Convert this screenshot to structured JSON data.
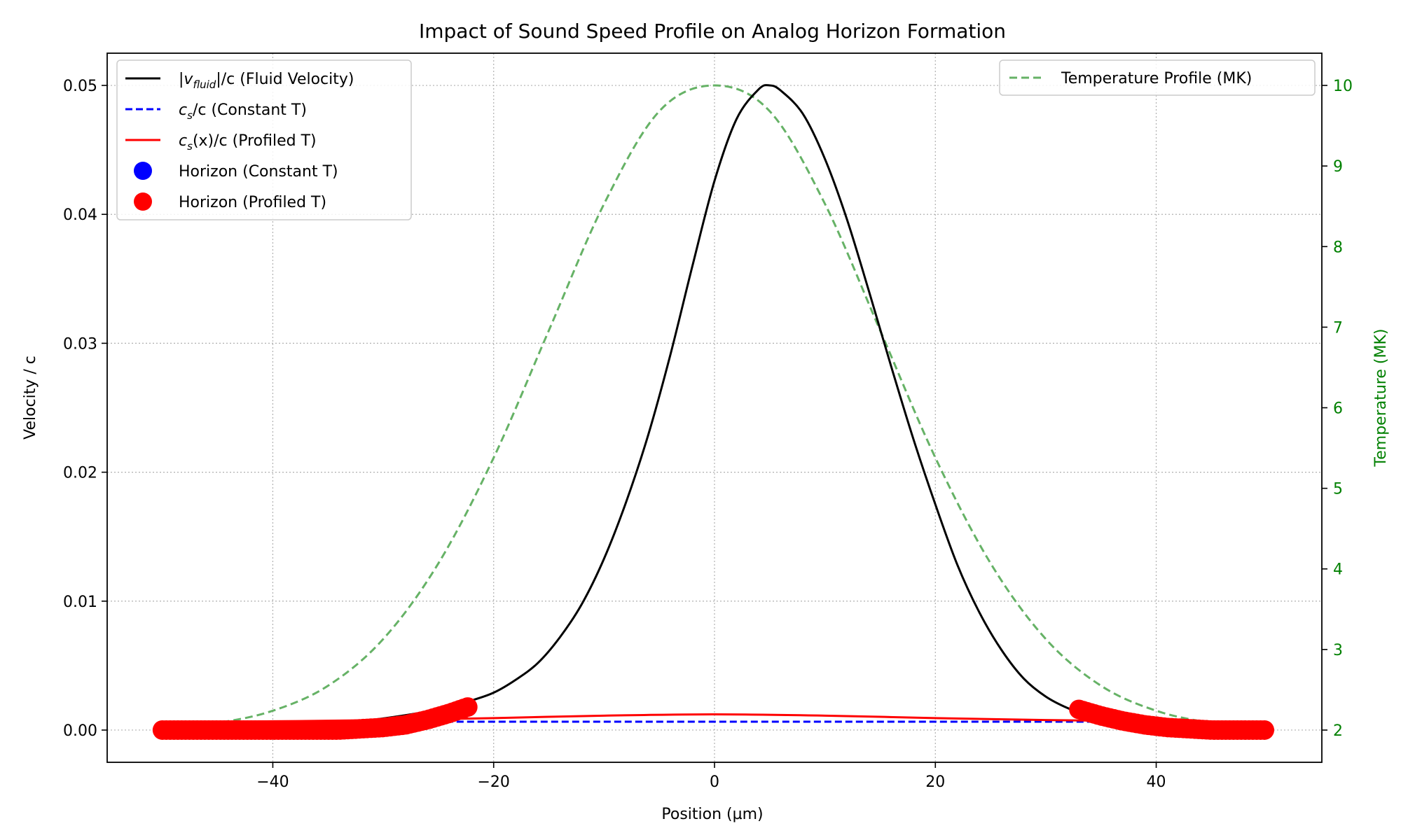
{
  "chart_data": {
    "type": "line",
    "title": "Impact of Sound Speed Profile on Analog Horizon Formation",
    "xlabel": "Position (µm)",
    "ylabel": "Velocity / c",
    "y2label": "Temperature (MK)",
    "xlim": [
      -55,
      55
    ],
    "ylim": [
      -0.0025,
      0.0525
    ],
    "y2lim": [
      1.6,
      10.4
    ],
    "xticks": [
      -40,
      -20,
      0,
      20,
      40
    ],
    "xtick_labels": [
      "−40",
      "−20",
      "0",
      "20",
      "40"
    ],
    "yticks": [
      0.0,
      0.01,
      0.02,
      0.03,
      0.04,
      0.05
    ],
    "ytick_labels": [
      "0.00",
      "0.01",
      "0.02",
      "0.03",
      "0.04",
      "0.05"
    ],
    "y2ticks": [
      2,
      3,
      4,
      5,
      6,
      7,
      8,
      9,
      10
    ],
    "y2tick_labels": [
      "2",
      "3",
      "4",
      "5",
      "6",
      "7",
      "8",
      "9",
      "10"
    ],
    "grid": true,
    "legend_left": {
      "placement": "upper-left",
      "entries": [
        {
          "label_main": "|v",
          "label_sub": "fluid",
          "label_rest": "|/c (Fluid Velocity)",
          "color": "#000000",
          "style": "solid-line"
        },
        {
          "label_main": "c",
          "label_sub": "s",
          "label_rest": "/c (Constant T)",
          "color": "#0000ff",
          "style": "dashed-line"
        },
        {
          "label_main": "c",
          "label_sub": "s",
          "label_rest": "(x)/c (Profiled T)",
          "color": "#ff0000",
          "style": "solid-line"
        },
        {
          "label_main": "Horizon (Constant T)",
          "label_sub": "",
          "label_rest": "",
          "color": "#0000ff",
          "style": "marker"
        },
        {
          "label_main": "Horizon (Profiled T)",
          "label_sub": "",
          "label_rest": "",
          "color": "#ff0000",
          "style": "marker"
        }
      ]
    },
    "legend_right": {
      "placement": "upper-right",
      "entries": [
        {
          "label": "Temperature Profile (MK)",
          "color": "#66b266",
          "style": "dashed-line"
        }
      ]
    },
    "series": [
      {
        "key": "fluid_velocity",
        "axis": "left",
        "color": "#000000",
        "x": [
          -50,
          -45,
          -40,
          -35,
          -30,
          -25,
          -22,
          -20,
          -18,
          -16,
          -14,
          -12,
          -10,
          -8,
          -6,
          -4,
          -2,
          0,
          2,
          4,
          5,
          6,
          8,
          10,
          12,
          14,
          16,
          18,
          20,
          22,
          24,
          26,
          28,
          30,
          32,
          34,
          36,
          38,
          40,
          45,
          50
        ],
        "values": [
          3e-05,
          8e-05,
          0.0002,
          0.0004,
          0.0009,
          0.0016,
          0.0023,
          0.0029,
          0.0039,
          0.0052,
          0.0072,
          0.0098,
          0.0133,
          0.0177,
          0.0229,
          0.0291,
          0.036,
          0.0426,
          0.0474,
          0.0497,
          0.05,
          0.0496,
          0.0478,
          0.0443,
          0.0396,
          0.034,
          0.0282,
          0.0226,
          0.0175,
          0.0128,
          0.0091,
          0.0062,
          0.004,
          0.0026,
          0.0017,
          0.0011,
          0.0007,
          0.0005,
          0.0003,
          0.0001,
          3e-05
        ]
      },
      {
        "key": "sound_speed_constant",
        "axis": "left",
        "color": "#0000ff",
        "x": [
          -50,
          50
        ],
        "values": [
          0.00065,
          0.00065
        ]
      },
      {
        "key": "sound_speed_profiled",
        "axis": "left",
        "color": "#ff0000",
        "x": [
          -50,
          -40,
          -30,
          -20,
          -10,
          0,
          10,
          20,
          30,
          40,
          50
        ],
        "values": [
          0.00065,
          0.00068,
          0.00078,
          0.00093,
          0.00112,
          0.00122,
          0.00112,
          0.00093,
          0.00078,
          0.00068,
          0.00065
        ]
      },
      {
        "key": "temperature",
        "axis": "right",
        "color": "#66b266",
        "x": [
          -50,
          -45,
          -40,
          -35,
          -30,
          -25,
          -20,
          -15,
          -10,
          -5,
          0,
          5,
          10,
          15,
          20,
          25,
          30,
          35,
          40,
          45,
          50
        ],
        "values": [
          2.03,
          2.09,
          2.24,
          2.55,
          3.13,
          4.07,
          5.38,
          6.96,
          8.53,
          9.68,
          10.0,
          9.68,
          8.53,
          6.96,
          5.38,
          4.07,
          3.13,
          2.55,
          2.24,
          2.09,
          2.03
        ]
      }
    ],
    "horizon_profiled_markers": {
      "color": "#ff0000",
      "x": [
        -50,
        -48,
        -46,
        -44,
        -42,
        -40,
        -38,
        -36,
        -34,
        -32,
        -30,
        -28,
        -26,
        -24,
        -22.3,
        33,
        35,
        37,
        39,
        41,
        43,
        45,
        47,
        50
      ],
      "values": [
        0.0,
        0.0,
        0.0,
        0.0,
        0.0,
        0.0,
        0.0,
        0.0,
        0.0,
        0.0001,
        0.0002,
        0.0004,
        0.0008,
        0.0013,
        0.0018,
        0.0016,
        0.0011,
        0.0007,
        0.0004,
        0.0002,
        0.0001,
        0.0,
        0.0,
        0.0
      ]
    }
  }
}
